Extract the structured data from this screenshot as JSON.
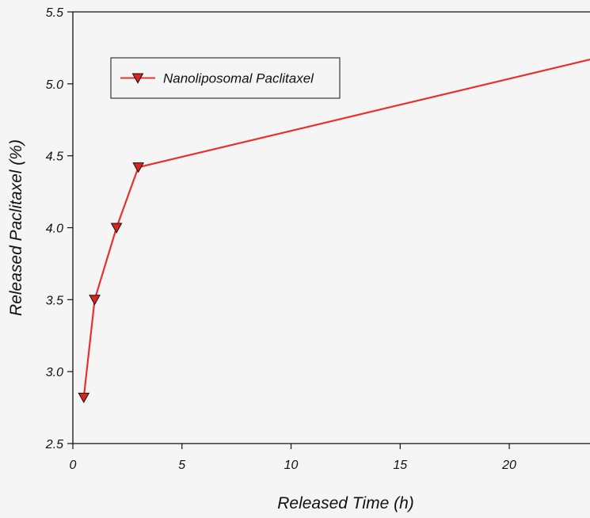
{
  "chart_data": {
    "type": "line",
    "title": "",
    "xlabel": "Released Time (h)",
    "ylabel": "Released Paclitaxel (%)",
    "xlim": [
      0,
      23.7
    ],
    "ylim": [
      2.5,
      5.5
    ],
    "xticks": [
      0,
      5,
      10,
      15,
      20
    ],
    "xtick_labels": [
      "0",
      "5",
      "10",
      "15",
      "20"
    ],
    "yticks": [
      2.5,
      3.0,
      3.5,
      4.0,
      4.5,
      5.0,
      5.5
    ],
    "ytick_labels": [
      "2.5",
      "3.0",
      "3.5",
      "4.0",
      "4.5",
      "5.0",
      "5.5"
    ],
    "grid": false,
    "legend_position": "top-left",
    "series": [
      {
        "name": "Nanoliposomal Paclitaxel",
        "color": "#e8312e",
        "marker": "triangle-down",
        "x": [
          0.5,
          1,
          2,
          3,
          24
        ],
        "y": [
          2.82,
          3.5,
          4.0,
          4.42,
          5.18
        ],
        "marker_x": [
          0.5,
          1,
          2,
          3
        ],
        "marker_y": [
          2.82,
          3.5,
          4.0,
          4.42
        ]
      }
    ]
  }
}
